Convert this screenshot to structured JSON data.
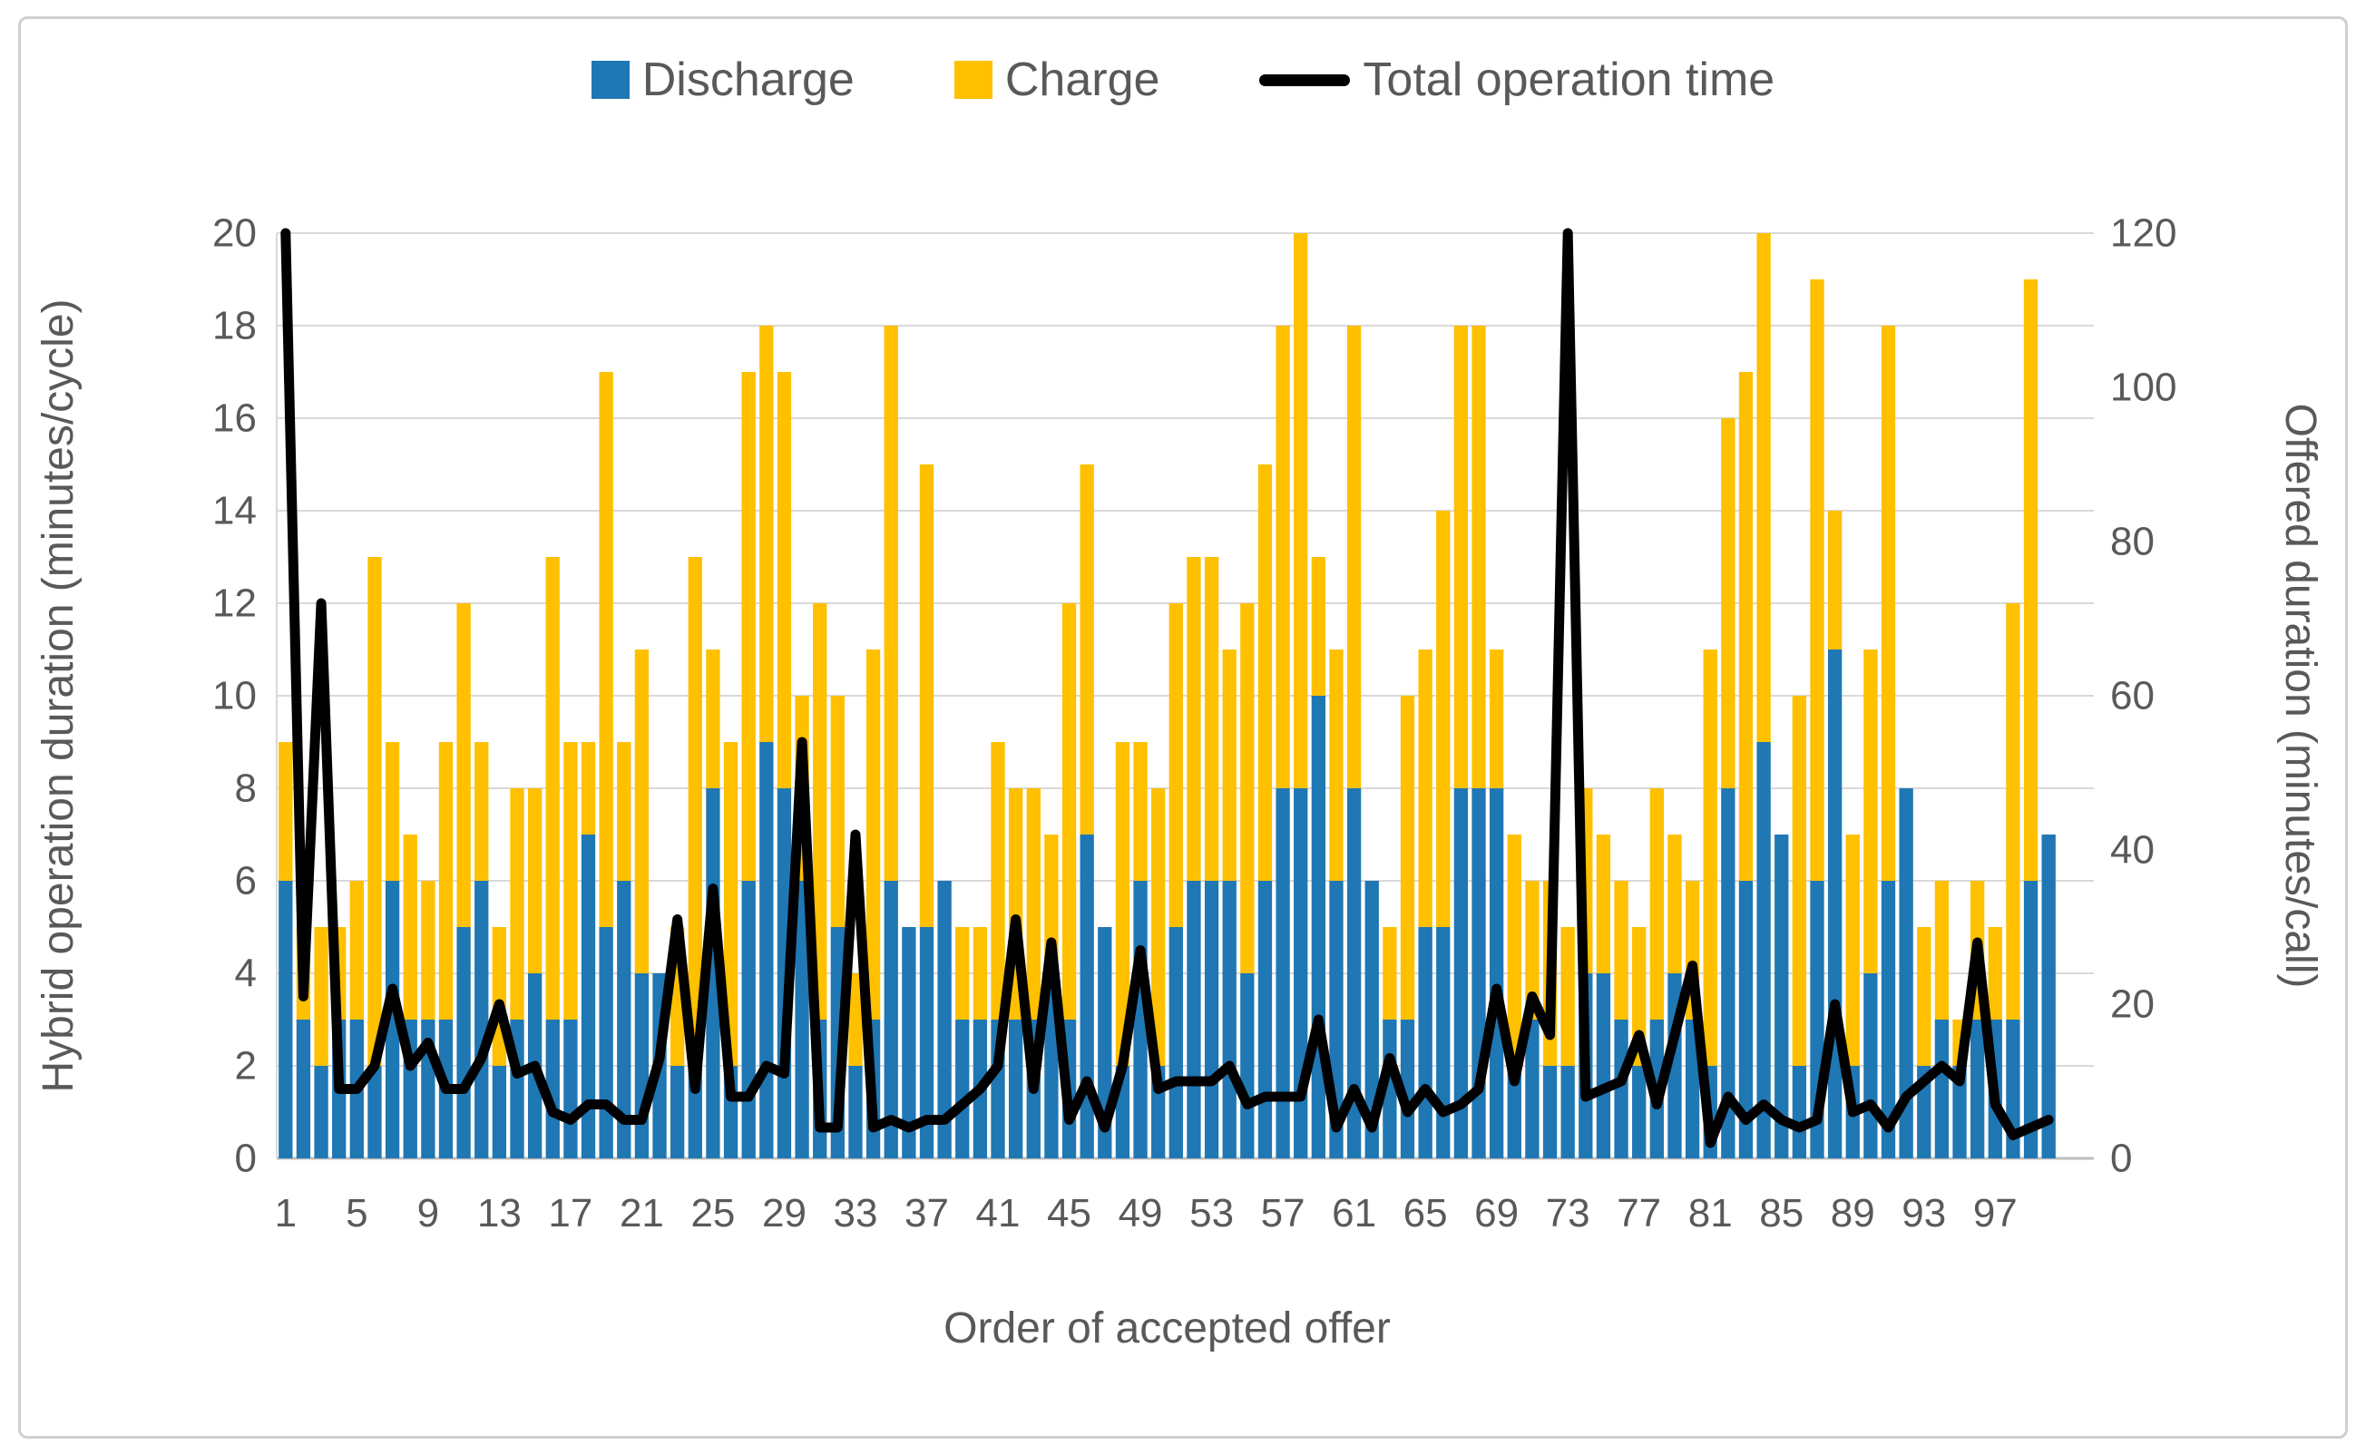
{
  "legend": {
    "discharge_label": "Discharge",
    "charge_label": "Charge",
    "line_label": "Total operation time"
  },
  "colors": {
    "discharge": "#1F77B4",
    "charge": "#FFC000",
    "line": "#000000",
    "gridline": "#D9D9D9",
    "axis_line": "#BFBFBF",
    "text": "#595959"
  },
  "chart_data": {
    "type": "combo_stacked_bar_line",
    "title": "",
    "xlabel": "Order of accepted offer",
    "ylabel_left": "Hybrid operation duration (minutes/cycle)",
    "ylabel_right": "Offered duration (minutes/call)",
    "ylim_left": [
      0,
      20
    ],
    "ylim_right": [
      0,
      120
    ],
    "left_ticks": [
      0,
      2,
      4,
      6,
      8,
      10,
      12,
      14,
      16,
      18,
      20
    ],
    "right_ticks": [
      0,
      20,
      40,
      60,
      80,
      100,
      120
    ],
    "x_tick_labels": [
      1,
      5,
      9,
      13,
      17,
      21,
      25,
      29,
      33,
      37,
      41,
      45,
      49,
      53,
      57,
      61,
      65,
      69,
      73,
      77,
      81,
      85,
      89,
      93,
      97
    ],
    "category_start": 1,
    "category_count": 100,
    "grid": true,
    "legend_position": "top",
    "series": [
      {
        "name": "Discharge",
        "axis": "left",
        "kind": "stacked-bar",
        "values": [
          6,
          3,
          2,
          3,
          3,
          2,
          6,
          3,
          3,
          3,
          5,
          6,
          2,
          3,
          4,
          3,
          3,
          7,
          5,
          6,
          4,
          4,
          2,
          2,
          8,
          2,
          6,
          9,
          8,
          6,
          3,
          5,
          2,
          3,
          6,
          5,
          5,
          6,
          3,
          3,
          3,
          3,
          3,
          4,
          3,
          7,
          5,
          2,
          6,
          2,
          5,
          6,
          6,
          6,
          4,
          6,
          8,
          8,
          10,
          6,
          8,
          6,
          3,
          3,
          5,
          5,
          8,
          8,
          8,
          2,
          3,
          2,
          2,
          4,
          4,
          3,
          2,
          3,
          4,
          3,
          2,
          8,
          6,
          9,
          7,
          2,
          6,
          11,
          2,
          4,
          6,
          8,
          2,
          3,
          2,
          3,
          3,
          3,
          6,
          7
        ]
      },
      {
        "name": "Charge",
        "axis": "left",
        "kind": "stacked-bar",
        "values": [
          3,
          2,
          3,
          2,
          3,
          11,
          3,
          4,
          3,
          6,
          7,
          3,
          3,
          5,
          4,
          10,
          6,
          2,
          12,
          3,
          7,
          0,
          3,
          11,
          3,
          7,
          11,
          9,
          9,
          4,
          9,
          5,
          2,
          8,
          12,
          0,
          10,
          0,
          2,
          2,
          6,
          5,
          5,
          3,
          9,
          8,
          0,
          7,
          3,
          6,
          7,
          7,
          7,
          5,
          8,
          9,
          10,
          12,
          3,
          5,
          10,
          0,
          2,
          7,
          6,
          9,
          10,
          10,
          3,
          5,
          3,
          4,
          3,
          4,
          3,
          3,
          3,
          5,
          3,
          3,
          9,
          8,
          11,
          11,
          0,
          8,
          13,
          3,
          5,
          7,
          12,
          0,
          3,
          3,
          1,
          3,
          2,
          9,
          13,
          0
        ]
      },
      {
        "name": "Total operation time",
        "axis": "right",
        "kind": "line",
        "values": [
          120,
          21,
          72,
          9,
          9,
          12,
          22,
          12,
          15,
          9,
          9,
          13,
          20,
          11,
          12,
          6,
          5,
          7,
          7,
          5,
          5,
          13,
          31,
          9,
          35,
          8,
          8,
          12,
          11,
          54,
          4,
          4,
          42,
          4,
          5,
          4,
          5,
          5,
          7,
          9,
          12,
          31,
          9,
          28,
          5,
          10,
          4,
          12,
          27,
          9,
          10,
          10,
          10,
          12,
          7,
          8,
          8,
          8,
          18,
          4,
          9,
          4,
          13,
          6,
          9,
          6,
          7,
          9,
          22,
          10,
          21,
          16,
          120,
          8,
          9,
          10,
          16,
          7,
          16,
          25,
          2,
          8,
          5,
          7,
          5,
          4,
          5,
          20,
          6,
          7,
          4,
          8,
          10,
          12,
          10,
          28,
          7,
          3,
          4,
          5
        ]
      }
    ]
  }
}
